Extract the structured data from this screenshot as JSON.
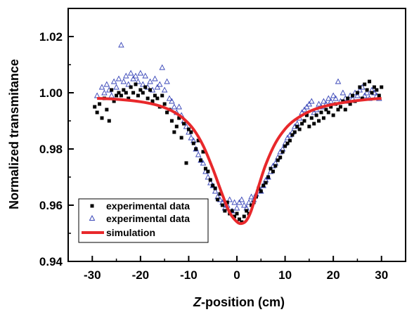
{
  "chart_data": {
    "type": "scatter",
    "xlabel_prefix": "Z",
    "xlabel_suffix": "-position (cm)",
    "ylabel": "Normalized transmitance",
    "xlim": [
      -35,
      35
    ],
    "ylim": [
      0.94,
      1.03
    ],
    "xticks": [
      -30,
      -20,
      -10,
      0,
      10,
      20,
      30
    ],
    "xtick_labels": [
      "-30",
      "-20",
      "-10",
      "0",
      "10",
      "20",
      "30"
    ],
    "yticks": [
      0.94,
      0.96,
      0.98,
      1.0,
      1.02
    ],
    "ytick_labels": [
      "0.94",
      "0.96",
      "0.98",
      "1.00",
      "1.02"
    ],
    "legend_position": "bottom-left",
    "series": [
      {
        "name": "experimental data",
        "marker": "square",
        "color": "#000000",
        "x": [
          -29.5,
          -29,
          -28.5,
          -28,
          -27.5,
          -27,
          -26.5,
          -26,
          -25.5,
          -25,
          -24.5,
          -24,
          -23.5,
          -23,
          -22.5,
          -22,
          -21.5,
          -21,
          -20.5,
          -20,
          -19.5,
          -19,
          -18.5,
          -18,
          -17.5,
          -17,
          -16.5,
          -16,
          -15.5,
          -15,
          -14.5,
          -14,
          -13.5,
          -13,
          -12.5,
          -12,
          -11.5,
          -11,
          -10.5,
          -10,
          -9.5,
          -9,
          -8.5,
          -8,
          -7.5,
          -7,
          -6.5,
          -6,
          -5.5,
          -5,
          -4.5,
          -4,
          -3.5,
          -3,
          -2.5,
          -2,
          -1.5,
          -1,
          -0.5,
          0,
          0.5,
          1,
          1.5,
          2,
          2.5,
          3,
          3.5,
          4,
          4.5,
          5,
          5.5,
          6,
          6.5,
          7,
          7.5,
          8,
          8.5,
          9,
          9.5,
          10,
          10.5,
          11,
          11.5,
          12,
          12.5,
          13,
          13.5,
          14,
          14.5,
          15,
          15.5,
          16,
          16.5,
          17,
          17.5,
          18,
          18.5,
          19,
          19.5,
          20,
          20.5,
          21,
          21.5,
          22,
          22.5,
          23,
          23.5,
          24,
          24.5,
          25,
          25.5,
          26,
          26.5,
          27,
          27.5,
          28,
          28.5,
          29,
          29.5,
          30
        ],
        "y": [
          0.995,
          0.993,
          0.996,
          0.991,
          0.998,
          0.994,
          0.99,
          1.001,
          0.997,
          0.999,
          1.0,
          0.999,
          1.001,
          1.0,
          0.998,
          1.002,
          1.0,
          1.003,
          0.999,
          1.001,
          1.0,
          1.002,
          0.998,
          1.001,
          0.997,
          0.999,
          0.998,
          0.995,
          0.999,
          0.996,
          0.993,
          0.994,
          0.99,
          0.986,
          0.988,
          0.991,
          0.984,
          0.989,
          0.975,
          0.987,
          0.986,
          0.982,
          0.98,
          0.983,
          0.976,
          0.979,
          0.973,
          0.972,
          0.969,
          0.967,
          0.966,
          0.962,
          0.964,
          0.96,
          0.958,
          0.961,
          0.957,
          0.958,
          0.956,
          0.957,
          0.955,
          0.954,
          0.956,
          0.958,
          0.957,
          0.96,
          0.961,
          0.963,
          0.966,
          0.965,
          0.967,
          0.968,
          0.97,
          0.973,
          0.972,
          0.974,
          0.976,
          0.977,
          0.979,
          0.981,
          0.982,
          0.983,
          0.985,
          0.986,
          0.988,
          0.987,
          0.989,
          0.99,
          0.992,
          0.988,
          0.991,
          0.989,
          0.992,
          0.99,
          0.993,
          0.991,
          0.994,
          0.993,
          0.995,
          0.992,
          0.996,
          0.994,
          0.995,
          0.997,
          0.994,
          0.998,
          0.996,
          0.999,
          0.997,
          1.0,
          1.002,
          0.998,
          1.003,
          1.001,
          1.004,
          1.0,
          1.002,
          1.001,
          0.999,
          1.002
        ]
      },
      {
        "name": "experimental data",
        "marker": "triangle",
        "color": "#3a47b8",
        "x": [
          -29,
          -28,
          -27.5,
          -27,
          -26.5,
          -26,
          -25.5,
          -25,
          -24.5,
          -24,
          -23.5,
          -23,
          -22.5,
          -22,
          -21.5,
          -21,
          -20.5,
          -20,
          -19.5,
          -19,
          -18.5,
          -18,
          -17.5,
          -17,
          -16.5,
          -16,
          -15.5,
          -15,
          -14.5,
          -14,
          -13.5,
          -13,
          -12.5,
          -12,
          -11.5,
          -11,
          -10.5,
          -10,
          -9.5,
          -9,
          -8.5,
          -8,
          -7.5,
          -7,
          -6.5,
          -6,
          -5.5,
          -5,
          -4.5,
          -4,
          -3.5,
          -3,
          -2.5,
          -2,
          -1.5,
          -1,
          -0.5,
          0,
          0.5,
          1,
          1.5,
          2,
          2.5,
          3,
          3.5,
          4,
          4.5,
          5,
          5.5,
          6,
          6.5,
          7,
          7.5,
          8,
          8.5,
          9,
          9.5,
          10,
          10.5,
          11,
          11.5,
          12,
          12.5,
          13,
          13.5,
          14,
          14.5,
          15,
          15.5,
          16,
          16.5,
          17,
          17.5,
          18,
          18.5,
          19,
          19.5,
          20,
          20.5,
          21,
          21.5,
          22,
          22.5,
          23,
          23.5,
          24,
          24.5,
          25,
          25.5,
          26,
          26.5,
          27,
          27.5,
          28,
          28.5,
          29,
          29.5
        ],
        "y": [
          0.999,
          1.002,
          1.0,
          1.003,
          1.001,
          0.999,
          1.004,
          1.002,
          1.005,
          1.017,
          1.004,
          1.006,
          1.003,
          1.007,
          1.005,
          1.006,
          1.004,
          1.007,
          1.003,
          1.006,
          1.002,
          1.004,
          1.001,
          1.005,
          1.002,
          1.003,
          1.009,
          1.001,
          1.004,
          0.998,
          0.997,
          0.995,
          0.993,
          0.995,
          0.992,
          0.99,
          0.988,
          0.986,
          0.984,
          0.983,
          0.98,
          0.978,
          0.976,
          0.975,
          0.972,
          0.97,
          0.968,
          0.967,
          0.965,
          0.963,
          0.962,
          0.961,
          0.959,
          0.96,
          0.962,
          0.958,
          0.961,
          0.959,
          0.961,
          0.962,
          0.96,
          0.959,
          0.961,
          0.963,
          0.962,
          0.964,
          0.966,
          0.965,
          0.967,
          0.969,
          0.97,
          0.972,
          0.974,
          0.975,
          0.977,
          0.979,
          0.98,
          0.982,
          0.984,
          0.985,
          0.986,
          0.988,
          0.989,
          0.991,
          0.993,
          0.994,
          0.995,
          0.996,
          0.997,
          0.993,
          0.994,
          0.996,
          0.995,
          0.997,
          0.996,
          0.998,
          0.997,
          0.999,
          0.998,
          1.004,
          0.997,
          1.0,
          0.998,
          0.997,
          0.999,
          0.998,
          1.0,
          0.999,
          1.001,
          1.002,
          0.999,
          1.0,
          0.998,
          1.001,
          1.0,
          0.999,
          0.998
        ]
      },
      {
        "name": "simulation",
        "marker": "line",
        "color": "#e8282b",
        "x": [
          -29,
          -26,
          -23,
          -20,
          -17,
          -15,
          -13,
          -11,
          -9,
          -7,
          -5,
          -3,
          -1.5,
          0,
          1,
          2,
          3,
          4.5,
          6,
          8,
          10,
          12,
          15,
          18,
          21,
          24,
          27,
          30
        ],
        "y": [
          0.998,
          0.9978,
          0.9974,
          0.9968,
          0.9958,
          0.9947,
          0.9931,
          0.9907,
          0.987,
          0.9812,
          0.973,
          0.9637,
          0.9574,
          0.9541,
          0.9535,
          0.9546,
          0.9582,
          0.9667,
          0.9745,
          0.9821,
          0.9871,
          0.9903,
          0.9933,
          0.9951,
          0.9962,
          0.997,
          0.9976,
          0.998
        ]
      }
    ]
  }
}
